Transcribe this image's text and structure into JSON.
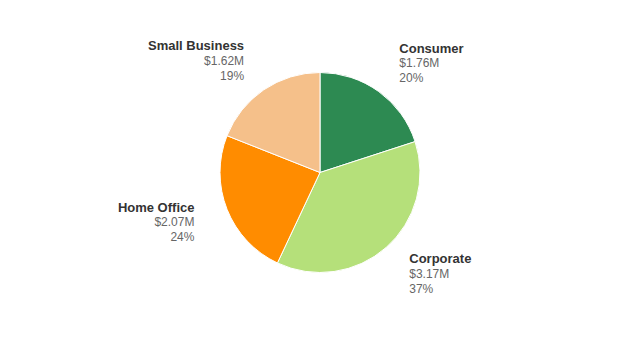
{
  "chart_data": {
    "type": "pie",
    "categories": [
      "Consumer",
      "Corporate",
      "Home Office",
      "Small Business"
    ],
    "values": [
      20,
      37,
      24,
      19
    ],
    "value_labels": [
      "20%",
      "37%",
      "24%",
      "19%"
    ],
    "amount_labels": [
      "$1.76M",
      "$3.17M",
      "$2.07M",
      "$1.62M"
    ],
    "colors": [
      "#2d8a52",
      "#b5e07a",
      "#ff8c00",
      "#f5c08a"
    ],
    "data_labels": true
  }
}
